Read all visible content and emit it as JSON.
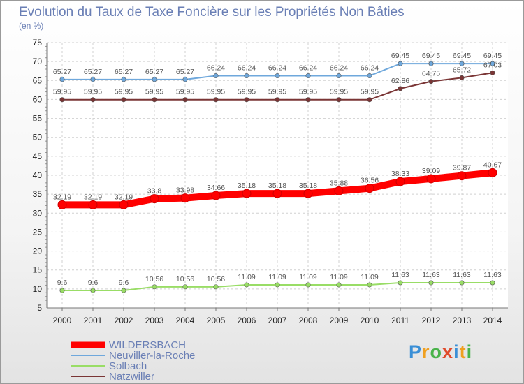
{
  "chart_data": {
    "type": "line",
    "title": "Evolution du Taux de Taxe Foncière sur les Propriétés Non Bâties",
    "ylabel": "(en %)",
    "xlabel": "",
    "ylim": [
      5,
      75
    ],
    "yticks": [
      5,
      10,
      15,
      20,
      25,
      30,
      35,
      40,
      45,
      50,
      55,
      60,
      65,
      70,
      75
    ],
    "x": [
      "2000",
      "2001",
      "2002",
      "2003",
      "2004",
      "2005",
      "2006",
      "2007",
      "2008",
      "2009",
      "2010",
      "2011",
      "2012",
      "2013",
      "2014"
    ],
    "series": [
      {
        "name": "WILDERSBACH",
        "color": "#ff0000",
        "values": [
          32.19,
          32.19,
          32.19,
          33.8,
          33.98,
          34.66,
          35.18,
          35.18,
          35.18,
          35.88,
          36.56,
          38.33,
          39.09,
          39.87,
          40.67
        ],
        "labels": [
          "32.19",
          "32.19",
          "32.19",
          "33.8",
          "33.98",
          "34.66",
          "35.18",
          "35.18",
          "35.18",
          "35.88",
          "36.56",
          "38.33",
          "39.09",
          "39.87",
          "40.67"
        ]
      },
      {
        "name": "Neuviller-la-Roche",
        "color": "#6fa8dc",
        "values": [
          65.27,
          65.27,
          65.27,
          65.27,
          65.27,
          66.24,
          66.24,
          66.24,
          66.24,
          66.24,
          66.24,
          69.45,
          69.45,
          69.45,
          69.45
        ],
        "labels": [
          "65.27",
          "65.27",
          "65.27",
          "65.27",
          "65.27",
          "66.24",
          "66.24",
          "66.24",
          "66.24",
          "66.24",
          "66.24",
          "69.45",
          "69.45",
          "69.45",
          "69.45"
        ]
      },
      {
        "name": "Solbach",
        "color": "#99dd66",
        "values": [
          9.6,
          9.6,
          9.6,
          10.56,
          10.56,
          10.56,
          11.09,
          11.09,
          11.09,
          11.09,
          11.09,
          11.63,
          11.63,
          11.63,
          11.63
        ],
        "labels": [
          "9.6",
          "9.6",
          "9.6",
          "10.56",
          "10.56",
          "10.56",
          "11.09",
          "11.09",
          "11.09",
          "11.09",
          "11.09",
          "11.63",
          "11.63",
          "11.63",
          "11.63"
        ]
      },
      {
        "name": "Natzwiller",
        "color": "#7a3535",
        "values": [
          59.95,
          59.95,
          59.95,
          59.95,
          59.95,
          59.95,
          59.95,
          59.95,
          59.95,
          59.95,
          59.95,
          62.86,
          64.75,
          65.72,
          67.03
        ],
        "labels": [
          "59.95",
          "59.95",
          "59.95",
          "59.95",
          "59.95",
          "59.95",
          "59.95",
          "59.95",
          "59.95",
          "59.95",
          "59.95",
          "62.86",
          "64.75",
          "65.72",
          "67.03"
        ]
      }
    ],
    "legend": [
      "WILDERSBACH",
      "Neuviller-la-Roche",
      "Solbach",
      "Natzwiller"
    ],
    "legend_position": "bottom-left",
    "grid": true
  },
  "logo": {
    "letters": [
      "P",
      "r",
      "o",
      "x",
      "i",
      "t",
      "i"
    ]
  }
}
